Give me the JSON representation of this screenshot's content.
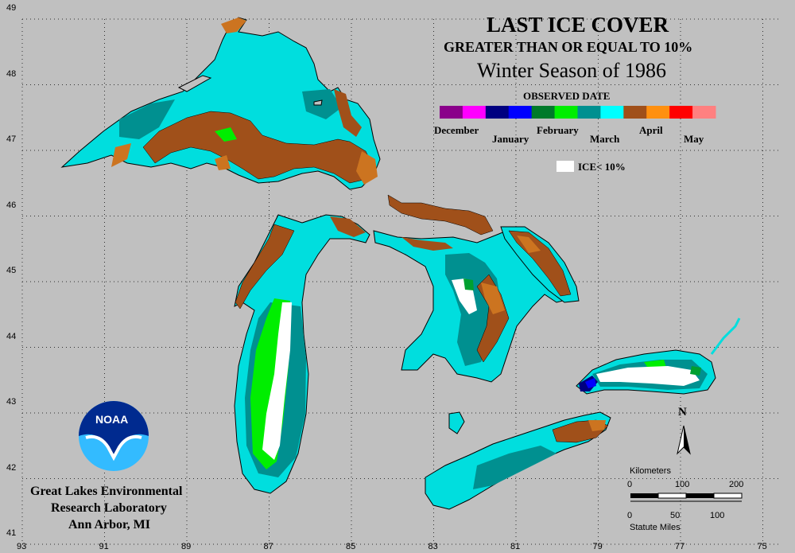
{
  "header": {
    "title": "LAST ICE COVER",
    "subtitle": "GREATER THAN OR EQUAL TO 10%",
    "season": "Winter Season of 1986"
  },
  "legend": {
    "heading": "OBSERVED DATE",
    "months": [
      {
        "label": "December",
        "colors": [
          "#8a008a",
          "#ff00ff"
        ]
      },
      {
        "label": "January",
        "colors": [
          "#000080",
          "#0000ff"
        ]
      },
      {
        "label": "February",
        "colors": [
          "#007a2a",
          "#00ee00"
        ]
      },
      {
        "label": "March",
        "colors": [
          "#009090",
          "#00ffff"
        ]
      },
      {
        "label": "April",
        "colors": [
          "#a0501a",
          "#ff9010"
        ]
      },
      {
        "label": "May",
        "colors": [
          "#ff0000",
          "#ff8080"
        ]
      }
    ],
    "ice_label": "ICE< 10%"
  },
  "axes": {
    "longitudes": [
      "93",
      "91",
      "89",
      "87",
      "85",
      "83",
      "81",
      "79",
      "77",
      "75"
    ],
    "latitudes": [
      "49",
      "48",
      "47",
      "46",
      "45",
      "44",
      "43",
      "42",
      "41"
    ]
  },
  "credit": {
    "logo_text": "NOAA",
    "line1": "Great Lakes Environmental",
    "line2": "Research Laboratory",
    "line3": "Ann Arbor, MI"
  },
  "north_arrow": "N",
  "scale_bar": {
    "km_label": "Kilometers",
    "km_ticks": [
      "0",
      "100",
      "200"
    ],
    "mi_label": "Statute Miles",
    "mi_ticks": [
      "0",
      "50",
      "100"
    ]
  },
  "colors": {
    "background": "#c0c0c0",
    "land_outline": "#000000",
    "open_water": "#00dede",
    "march_dark": "#009090",
    "april": "#a0501a",
    "february": "#00ee00",
    "ice_lt_10": "#ffffff"
  }
}
